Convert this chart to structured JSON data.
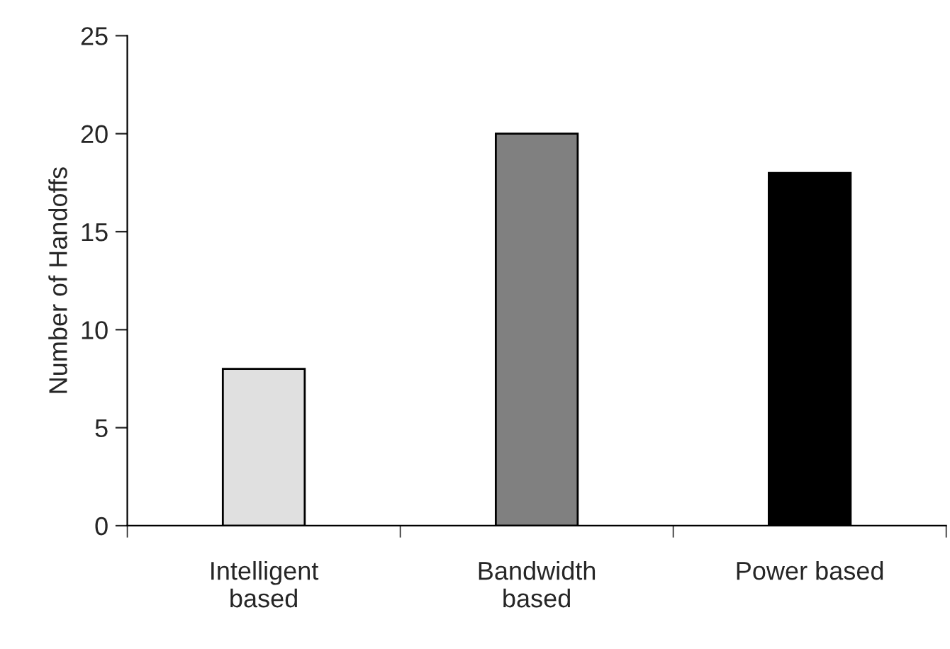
{
  "chart_data": {
    "type": "bar",
    "ylabel": "Number of Handoffs",
    "categories": [
      "Intelligent\nbased",
      "Bandwidth\nbased",
      "Power based"
    ],
    "values": [
      8,
      20,
      18
    ],
    "colors": [
      "#e0e0e0",
      "#808080",
      "#000000"
    ],
    "ylim": [
      0,
      25
    ],
    "yticks": [
      0,
      5,
      10,
      15,
      20,
      25
    ],
    "grid": false,
    "legend": false
  }
}
